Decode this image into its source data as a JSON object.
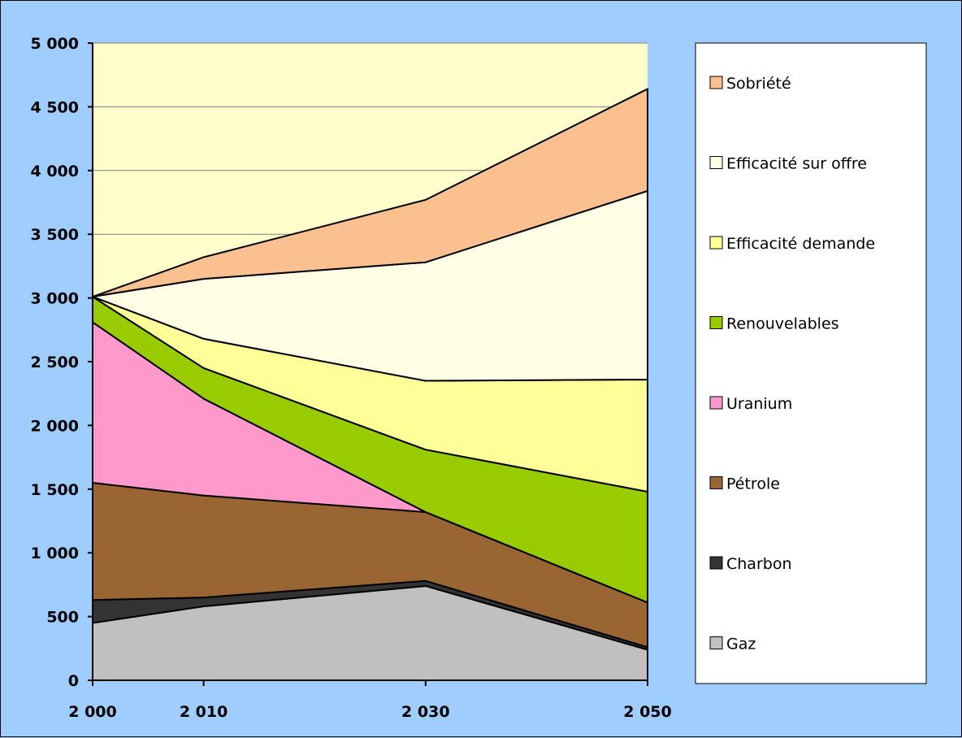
{
  "chart_data": {
    "type": "area",
    "stacked": true,
    "x": [
      2000,
      2010,
      2030,
      2050
    ],
    "x_tick_labels": [
      "2 000",
      "2 010",
      "2 030",
      "2 050"
    ],
    "y_tick_values": [
      0,
      500,
      1000,
      1500,
      2000,
      2500,
      3000,
      3500,
      4000,
      4500,
      5000
    ],
    "y_tick_labels": [
      "0",
      "500",
      "1 000",
      "1 500",
      "2 000",
      "2 500",
      "3 000",
      "3 500",
      "4 000",
      "4 500",
      "5 000"
    ],
    "ylim": [
      0,
      5000
    ],
    "grid": "horizontal",
    "legend_position": "right",
    "plot_background": "#ffffcc",
    "title": "",
    "xlabel": "",
    "ylabel": "",
    "series": [
      {
        "name": "Gaz",
        "color": "#c0c0c0",
        "values": [
          450,
          580,
          740,
          240
        ]
      },
      {
        "name": "Charbon",
        "color": "#333333",
        "values": [
          180,
          70,
          40,
          20
        ]
      },
      {
        "name": "Pétrole",
        "color": "#996633",
        "values": [
          920,
          800,
          540,
          350
        ]
      },
      {
        "name": "Uranium",
        "color": "#ff99cc",
        "values": [
          1260,
          760,
          0,
          0
        ]
      },
      {
        "name": "Renouvelables",
        "color": "#99cc00",
        "values": [
          200,
          240,
          490,
          870
        ]
      },
      {
        "name": "Efficacité demande",
        "color": "#ffff99",
        "values": [
          0,
          230,
          540,
          880
        ]
      },
      {
        "name": "Efficacité sur offre",
        "color": "#ffffe5",
        "values": [
          0,
          470,
          930,
          1480
        ]
      },
      {
        "name": "Sobriété",
        "color": "#fac090",
        "values": [
          0,
          170,
          490,
          800
        ]
      }
    ]
  }
}
